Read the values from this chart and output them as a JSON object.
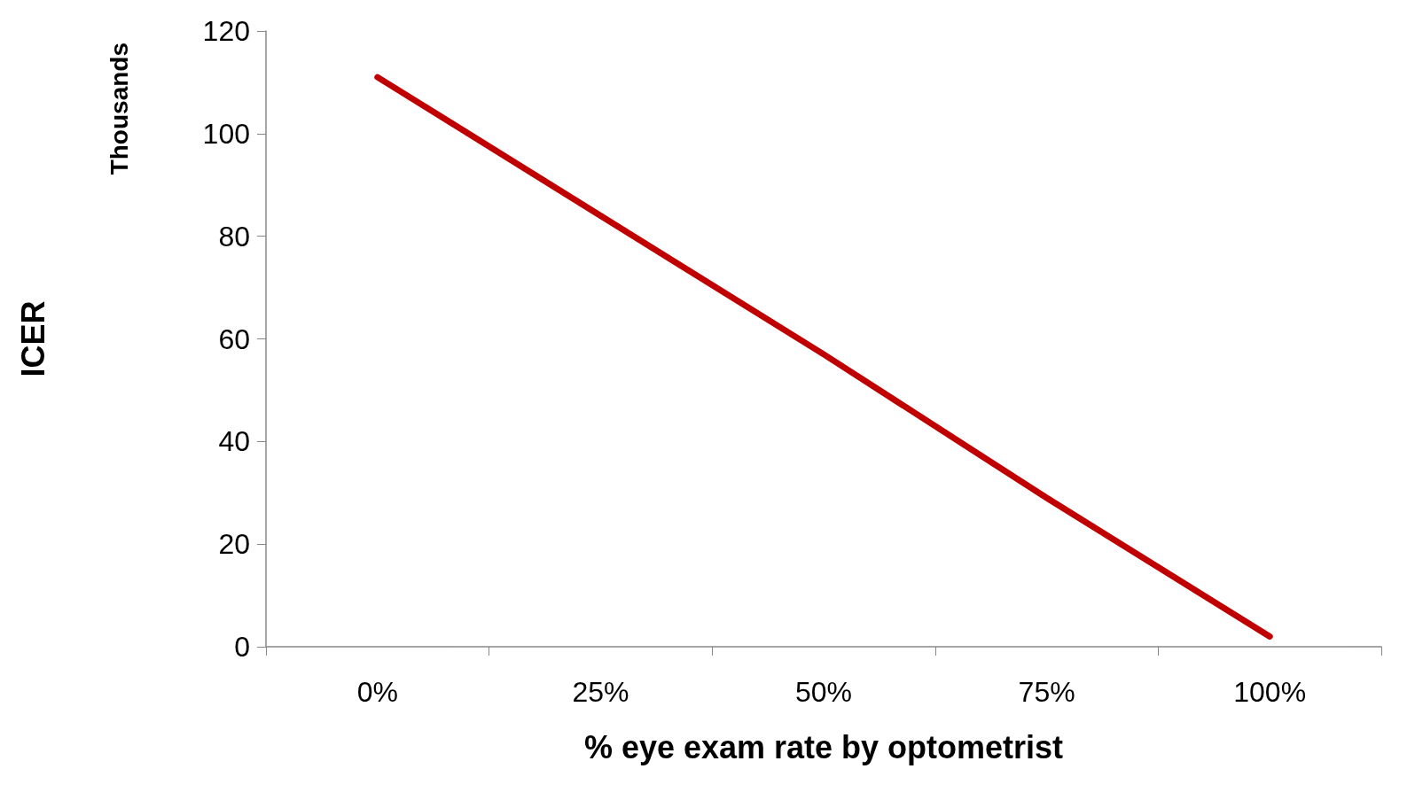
{
  "chart_data": {
    "type": "line",
    "xlabel": "% eye exam rate by optometrist",
    "ylabel": "ICER",
    "annotations": [
      "Thousands"
    ],
    "categories": [
      "0%",
      "25%",
      "50%",
      "75%",
      "100%"
    ],
    "series": [
      {
        "color": "#c00000",
        "values": [
          111,
          84,
          57,
          29,
          2
        ]
      }
    ],
    "ylim": [
      0,
      120
    ],
    "yticks": [
      0,
      20,
      40,
      60,
      80,
      100,
      120
    ],
    "grid": false,
    "marker": "none",
    "line_style": "solid"
  }
}
